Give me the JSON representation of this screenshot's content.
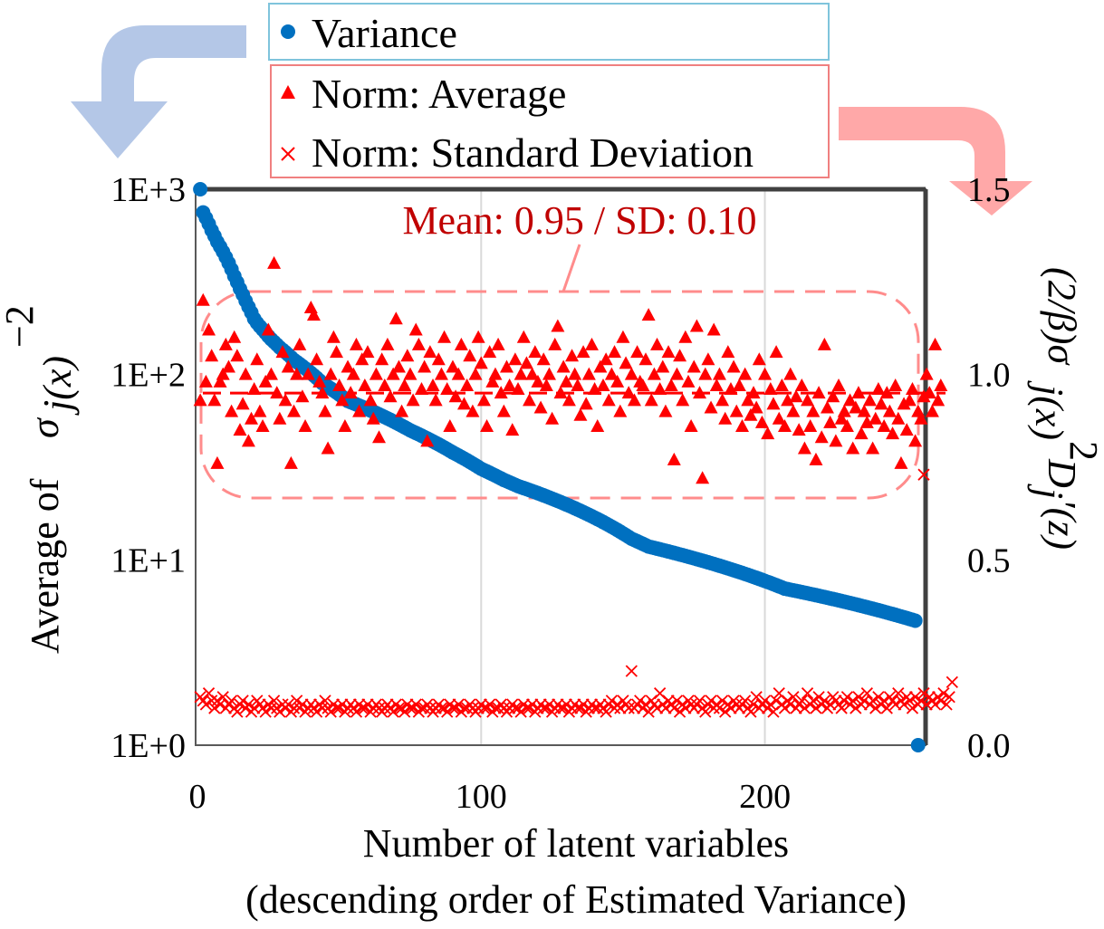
{
  "chart_data": {
    "type": "scatter",
    "title": "",
    "xlabel_line1": "Number of latent variables",
    "xlabel_line2": "(descending order of Estimated Variance)",
    "ylabel_left_prefix": "Average of",
    "ylabel_left_symbol": "σ",
    "ylabel_left_sub": "j(x)",
    "ylabel_left_sup": "−2",
    "ylabel_right_text": "(2/β)σ",
    "ylabel_right_sub": "j(x)",
    "ylabel_right_sup": "2",
    "ylabel_right_tail": "D",
    "ylabel_right_tail_sub": "j",
    "ylabel_right_tail_end": "′(z)",
    "x_ticks": [
      "0",
      "100",
      "200"
    ],
    "x_tick_values": [
      0,
      100,
      200
    ],
    "xlim": [
      0,
      256
    ],
    "y_left_ticks": [
      "1E+0",
      "1E+1",
      "1E+2",
      "1E+3"
    ],
    "y_left_log_range": [
      0,
      3
    ],
    "y_right_ticks": [
      "0.0",
      "0.5",
      "1.0",
      "1.5"
    ],
    "y_right_range": [
      0,
      1.5
    ],
    "legend": {
      "variance": "Variance",
      "norm_average": "Norm: Average",
      "norm_sd": "Norm: Standard Deviation"
    },
    "annotation": "Mean: 0.95 / SD: 0.10",
    "mean_line": 0.95,
    "series": [
      {
        "name": "Variance",
        "axis": "left",
        "marker": "circle",
        "color": "#0070c0",
        "values": [
          1000,
          750,
          700,
          650,
          600,
          560,
          520,
          490,
          460,
          430,
          400,
          370,
          340,
          315,
          290,
          270,
          250,
          232,
          216,
          200,
          190,
          182,
          175,
          168,
          161,
          155,
          150,
          145,
          140,
          136,
          132,
          128,
          124,
          120,
          117,
          114,
          111,
          108,
          105,
          102,
          99,
          96,
          93,
          90,
          88,
          86,
          84,
          82,
          80,
          78,
          76,
          74,
          72,
          71,
          70,
          69,
          68,
          67,
          66,
          65,
          64,
          63,
          62,
          61,
          60,
          59,
          58,
          57,
          56,
          55,
          54,
          53,
          52,
          51,
          50,
          49.2,
          48.4,
          47.6,
          46.8,
          46,
          45.2,
          44.4,
          43.6,
          42.8,
          42,
          41.2,
          40.4,
          39.6,
          38.8,
          38,
          37.3,
          36.6,
          35.9,
          35.2,
          34.5,
          33.8,
          33.1,
          32.4,
          31.7,
          31,
          30.5,
          30,
          29.5,
          29,
          28.5,
          28,
          27.5,
          27,
          26.6,
          26.2,
          25.8,
          25.4,
          25,
          24.7,
          24.4,
          24.1,
          23.8,
          23.5,
          23.2,
          22.9,
          22.6,
          22.3,
          22,
          21.7,
          21.4,
          21.1,
          20.8,
          20.5,
          20.2,
          19.9,
          19.6,
          19.3,
          19,
          18.7,
          18.4,
          18.1,
          17.8,
          17.5,
          17.2,
          16.9,
          16.6,
          16.3,
          16,
          15.7,
          15.4,
          15.1,
          14.8,
          14.5,
          14.2,
          13.9,
          13.6,
          13.3,
          13,
          12.8,
          12.6,
          12.4,
          12.2,
          12,
          11.8,
          11.7,
          11.6,
          11.5,
          11.4,
          11.3,
          11.2,
          11.1,
          11,
          10.9,
          10.8,
          10.7,
          10.6,
          10.5,
          10.4,
          10.3,
          10.2,
          10.1,
          10,
          9.9,
          9.8,
          9.7,
          9.6,
          9.5,
          9.4,
          9.3,
          9.2,
          9.1,
          9,
          8.9,
          8.8,
          8.7,
          8.6,
          8.5,
          8.4,
          8.3,
          8.2,
          8.1,
          8,
          7.9,
          7.8,
          7.7,
          7.6,
          7.5,
          7.4,
          7.3,
          7.2,
          7.1,
          7,
          6.95,
          6.9,
          6.85,
          6.8,
          6.75,
          6.7,
          6.65,
          6.6,
          6.55,
          6.5,
          6.45,
          6.4,
          6.35,
          6.3,
          6.25,
          6.2,
          6.15,
          6.1,
          6.05,
          6,
          5.95,
          5.9,
          5.85,
          5.8,
          5.75,
          5.7,
          5.65,
          5.6,
          5.55,
          5.5,
          5.45,
          5.4,
          5.35,
          5.3,
          5.25,
          5.2,
          5.15,
          5.1,
          5.05,
          5,
          4.95,
          4.9,
          4.85,
          4.8,
          4.75,
          4.7,
          1
        ]
      },
      {
        "name": "Norm: Average",
        "axis": "right",
        "marker": "triangle",
        "color": "#ff0000",
        "values": [
          0.93,
          1.2,
          0.98,
          1.12,
          1.05,
          0.93,
          0.76,
          0.98,
          1.0,
          1.08,
          1.02,
          0.9,
          1.1,
          1.05,
          0.85,
          0.92,
          1.0,
          0.82,
          0.88,
          0.96,
          1.04,
          0.9,
          0.86,
          0.98,
          1.12,
          1.0,
          1.3,
          0.95,
          0.88,
          1.06,
          0.93,
          1.02,
          0.76,
          0.9,
          1.0,
          1.08,
          0.94,
          0.86,
          1.0,
          1.18,
          1.16,
          1.04,
          0.98,
          0.95,
          0.9,
          0.8,
          1.0,
          1.1,
          1.06,
          0.97,
          0.93,
          0.86,
          1.02,
          0.95,
          1.0,
          1.08,
          0.9,
          1.04,
          0.97,
          1.06,
          0.93,
          0.88,
          1.0,
          0.83,
          1.04,
          0.97,
          1.08,
          0.94,
          1.0,
          1.15,
          1.02,
          0.9,
          0.97,
          1.05,
          1.0,
          0.93,
          1.12,
          1.08,
          0.96,
          1.02,
          0.82,
          1.06,
          0.97,
          0.93,
          1.04,
          1.0,
          1.1,
          0.96,
          0.86,
          1.02,
          0.94,
          1.0,
          1.08,
          0.92,
          0.97,
          1.05,
          0.9,
          1.0,
          1.1,
          1.03,
          0.93,
          0.86,
          1.06,
          0.98,
          1.0,
          1.08,
          0.95,
          0.9,
          1.02,
          0.97,
          0.85,
          1.04,
          0.96,
          1.0,
          1.1,
          1.03,
          0.93,
          1.0,
          1.06,
          0.98,
          0.91,
          1.04,
          0.97,
          1.0,
          0.88,
          1.08,
          1.13,
          0.95,
          1.02,
          0.98,
          0.93,
          1.05,
          1.0,
          0.97,
          0.89,
          1.06,
          0.92,
          1.0,
          1.08,
          0.96,
          0.86,
          1.02,
          0.97,
          1.04,
          0.93,
          1.0,
          1.06,
          0.98,
          0.9,
          1.1,
          1.03,
          0.95,
          1.0,
          0.93,
          1.06,
          0.98,
          0.97,
          1.04,
          1.16,
          0.93,
          1.0,
          1.08,
          0.96,
          1.02,
          0.9,
          1.06,
          0.97,
          0.77,
          1.0,
          1.05,
          0.93,
          1.1,
          0.98,
          0.86,
          1.02,
          1.13,
          0.95,
          0.72,
          1.0,
          1.04,
          0.91,
          1.12,
          0.97,
          1.0,
          0.93,
          0.88,
          1.06,
          0.96,
          1.02,
          0.9,
          0.97,
          0.86,
          1.0,
          0.93,
          0.89,
          0.95,
          0.91,
          1.04,
          0.87,
          1.0,
          0.84,
          0.96,
          0.92,
          1.06,
          0.88,
          0.97,
          0.86,
          0.93,
          1.0,
          0.9,
          0.94,
          0.85,
          0.97,
          0.8,
          0.93,
          0.86,
          0.9,
          0.77,
          0.95,
          0.83,
          1.08,
          0.91,
          0.87,
          0.94,
          0.82,
          0.97,
          0.88,
          0.9,
          0.86,
          0.93,
          0.8,
          0.91,
          0.95,
          0.84,
          0.9,
          0.87,
          0.93,
          0.8,
          0.88,
          0.96,
          0.92,
          0.86,
          0.95,
          0.9,
          0.84,
          0.97,
          0.88,
          0.76,
          0.92,
          0.85,
          0.93,
          0.96,
          0.82,
          0.9,
          0.88,
          0.94,
          1.0,
          0.95,
          0.9,
          1.08,
          0.93,
          0.97
        ]
      },
      {
        "name": "Norm: Standard Deviation",
        "axis": "right",
        "marker": "x",
        "color": "#ff0000",
        "values": [
          0.13,
          0.12,
          0.11,
          0.14,
          0.12,
          0.1,
          0.12,
          0.11,
          0.13,
          0.1,
          0.11,
          0.12,
          0.1,
          0.09,
          0.11,
          0.12,
          0.1,
          0.11,
          0.09,
          0.1,
          0.12,
          0.11,
          0.1,
          0.09,
          0.11,
          0.1,
          0.12,
          0.1,
          0.09,
          0.11,
          0.1,
          0.11,
          0.09,
          0.1,
          0.12,
          0.1,
          0.11,
          0.09,
          0.1,
          0.11,
          0.1,
          0.09,
          0.11,
          0.1,
          0.12,
          0.1,
          0.09,
          0.11,
          0.1,
          0.1,
          0.11,
          0.09,
          0.1,
          0.11,
          0.1,
          0.09,
          0.11,
          0.1,
          0.1,
          0.11,
          0.09,
          0.1,
          0.11,
          0.1,
          0.09,
          0.1,
          0.11,
          0.1,
          0.09,
          0.11,
          0.1,
          0.1,
          0.09,
          0.11,
          0.1,
          0.1,
          0.11,
          0.09,
          0.1,
          0.1,
          0.11,
          0.1,
          0.09,
          0.1,
          0.11,
          0.1,
          0.1,
          0.09,
          0.11,
          0.1,
          0.1,
          0.11,
          0.09,
          0.1,
          0.1,
          0.11,
          0.1,
          0.09,
          0.1,
          0.11,
          0.1,
          0.1,
          0.11,
          0.09,
          0.1,
          0.1,
          0.11,
          0.1,
          0.09,
          0.1,
          0.11,
          0.1,
          0.1,
          0.09,
          0.11,
          0.1,
          0.1,
          0.11,
          0.09,
          0.1,
          0.11,
          0.1,
          0.1,
          0.11,
          0.09,
          0.1,
          0.11,
          0.1,
          0.1,
          0.11,
          0.09,
          0.1,
          0.11,
          0.1,
          0.1,
          0.11,
          0.09,
          0.1,
          0.11,
          0.1,
          0.1,
          0.11,
          0.1,
          0.09,
          0.11,
          0.12,
          0.1,
          0.11,
          0.1,
          0.12,
          0.11,
          0.1,
          0.2,
          0.1,
          0.11,
          0.12,
          0.1,
          0.11,
          0.09,
          0.12,
          0.11,
          0.1,
          0.14,
          0.11,
          0.1,
          0.12,
          0.11,
          0.1,
          0.12,
          0.09,
          0.11,
          0.1,
          0.12,
          0.11,
          0.1,
          0.11,
          0.12,
          0.1,
          0.09,
          0.11,
          0.12,
          0.1,
          0.11,
          0.1,
          0.12,
          0.09,
          0.11,
          0.1,
          0.12,
          0.11,
          0.1,
          0.11,
          0.12,
          0.1,
          0.09,
          0.11,
          0.13,
          0.1,
          0.11,
          0.12,
          0.1,
          0.11,
          0.09,
          0.12,
          0.14,
          0.11,
          0.1,
          0.12,
          0.11,
          0.13,
          0.1,
          0.11,
          0.12,
          0.1,
          0.14,
          0.11,
          0.12,
          0.1,
          0.13,
          0.11,
          0.12,
          0.1,
          0.11,
          0.13,
          0.12,
          0.11,
          0.1,
          0.12,
          0.13,
          0.11,
          0.12,
          0.1,
          0.13,
          0.11,
          0.12,
          0.14,
          0.11,
          0.12,
          0.1,
          0.13,
          0.11,
          0.12,
          0.1,
          0.13,
          0.12,
          0.11,
          0.14,
          0.12,
          0.11,
          0.13,
          0.12,
          0.1,
          0.13,
          0.11,
          0.12,
          0.14,
          0.11,
          0.13,
          0.12,
          0.11,
          0.13,
          0.12,
          0.14,
          0.11,
          0.13,
          0.17
        ]
      }
    ],
    "outliers": [
      {
        "series": "Norm: Standard Deviation",
        "x": 256,
        "y": 0.73
      }
    ]
  }
}
